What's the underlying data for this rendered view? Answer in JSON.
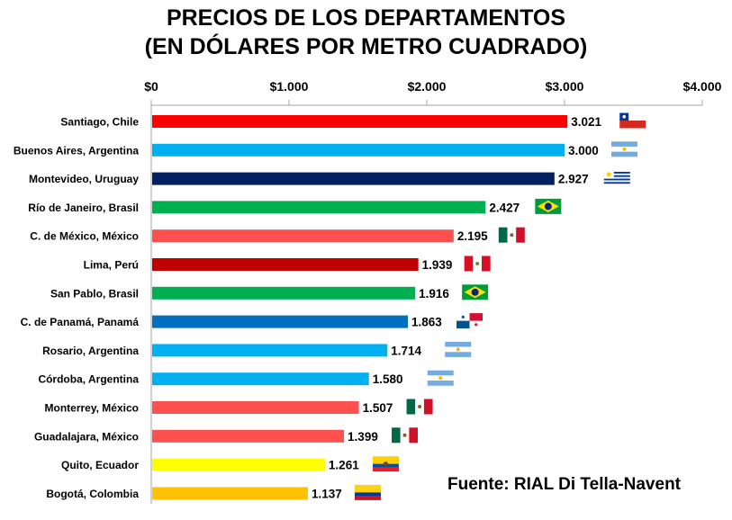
{
  "chart_data": {
    "type": "bar",
    "orientation": "horizontal",
    "title": "PRECIOS DE LOS DEPARTAMENTOS",
    "subtitle": "(EN DÓLARES POR METRO CUADRADO)",
    "xlim": [
      0,
      4000
    ],
    "ticks": [
      0,
      1000,
      2000,
      3000,
      4000
    ],
    "tick_labels": [
      "$0",
      "$1.000",
      "$2.000",
      "$3.000",
      "$4.000"
    ],
    "grid": false,
    "categories": [
      "Santiago, Chile",
      "Buenos Aires, Argentina",
      "Montevideo, Uruguay",
      "Río de Janeiro, Brasil",
      "C. de México, México",
      "Lima, Perú",
      "San Pablo, Brasil",
      "C. de Panamá, Panamá",
      "Rosario, Argentina",
      "Córdoba, Argentina",
      "Monterrey, México",
      "Guadalajara, México",
      "Quito, Ecuador",
      "Bogotá, Colombia"
    ],
    "values": [
      3021,
      3000,
      2927,
      2427,
      2195,
      1939,
      1916,
      1863,
      1714,
      1580,
      1507,
      1399,
      1261,
      1137
    ],
    "value_labels": [
      "3.021",
      "3.000",
      "2.927",
      "2.427",
      "2.195",
      "1.939",
      "1.916",
      "1.863",
      "1.714",
      "1.580",
      "1.507",
      "1.399",
      "1.261",
      "1.137"
    ],
    "bar_colors": [
      "#ff0000",
      "#00b0f0",
      "#002060",
      "#00b050",
      "#ff5050",
      "#c00000",
      "#00b050",
      "#0070c0",
      "#00b0f0",
      "#00b0f0",
      "#ff5050",
      "#ff5050",
      "#ffff00",
      "#ffc000"
    ],
    "flags": [
      "chile-flag",
      "argentina-flag",
      "uruguay-flag",
      "brazil-flag",
      "mexico-flag",
      "peru-flag",
      "brazil-flag",
      "panama-flag",
      "argentina-flag",
      "argentina-flag",
      "mexico-flag",
      "mexico-flag",
      "ecuador-flag",
      "colombia-flag"
    ]
  },
  "source": "Fuente: RIAL Di Tella-Navent"
}
